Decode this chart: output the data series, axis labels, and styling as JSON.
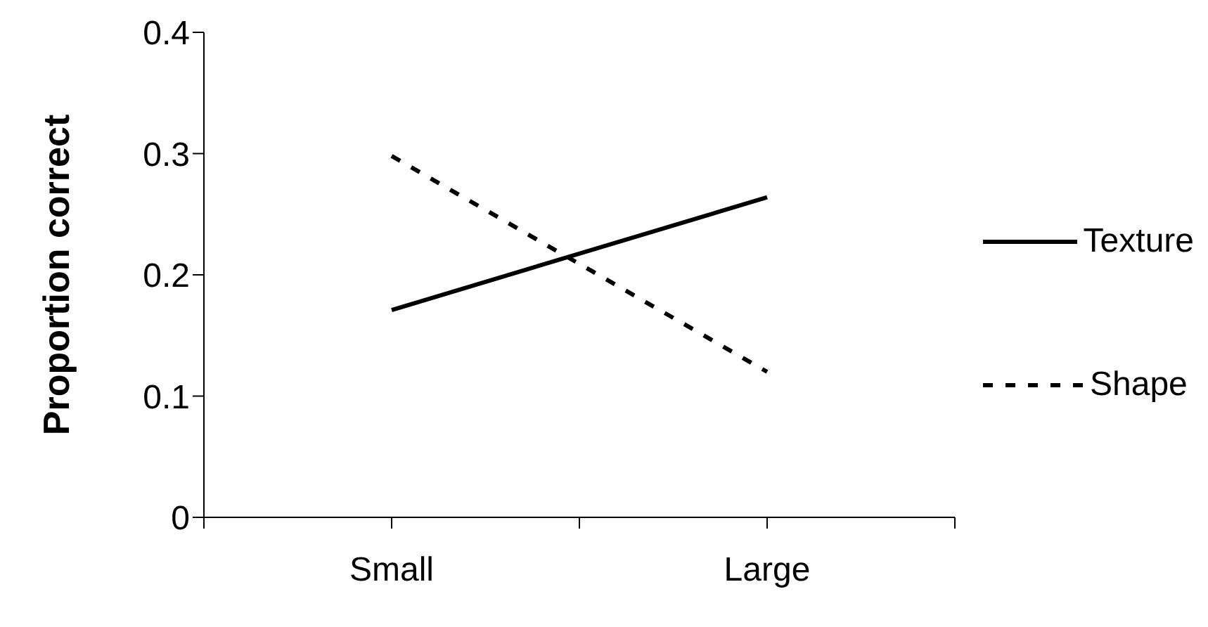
{
  "chart_data": {
    "type": "line",
    "ylabel": "Proportion correct",
    "categories": [
      "Small",
      "Large"
    ],
    "ylim": [
      0,
      0.4
    ],
    "yticks": [
      0,
      0.1,
      0.2,
      0.3,
      0.4
    ],
    "grid": false,
    "legend": "right",
    "marker": "none",
    "series": [
      {
        "name": "Texture",
        "color": "#000000",
        "line_style": "solid",
        "values": [
          0.171,
          0.264
        ]
      },
      {
        "name": "Shape",
        "color": "#000000",
        "line_style": "dashed",
        "values": [
          0.298,
          0.12
        ]
      }
    ]
  }
}
